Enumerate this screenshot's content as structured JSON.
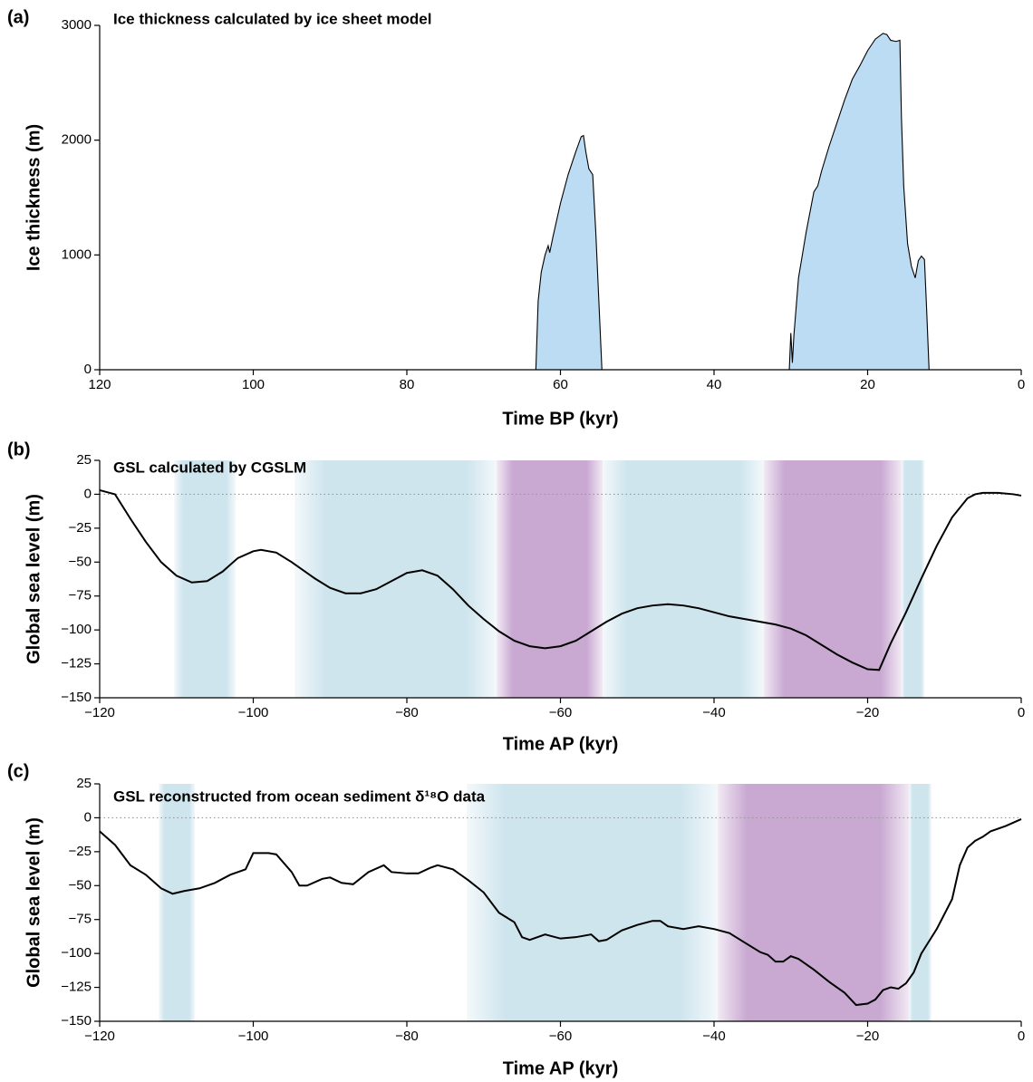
{
  "chart_data": [
    {
      "type": "area",
      "panel_label": "(a)",
      "title": "Ice thickness calculated by ice sheet model",
      "x_label": "Time BP (kyr)",
      "y_label": "Ice thickness (m)",
      "color": "#bcdcf4",
      "x": [
        120,
        63.2,
        62.9,
        62.5,
        62.0,
        61.6,
        61.4,
        61.0,
        60.0,
        59.0,
        58.0,
        57.3,
        57.0,
        56.7,
        56.3,
        55.8,
        55.4,
        55.0,
        54.6,
        30.2,
        30.0,
        29.8,
        29.6,
        29.0,
        28.0,
        27.0,
        26.5,
        26.0,
        25.0,
        24.0,
        23.0,
        22.0,
        21.0,
        20.0,
        19.0,
        18.0,
        17.5,
        17.0,
        16.3,
        15.8,
        15.6,
        15.3,
        14.8,
        14.3,
        13.8,
        13.4,
        13.0,
        12.6,
        12.3,
        12.0,
        0
      ],
      "values": [
        0,
        0,
        600,
        850,
        1000,
        1080,
        1020,
        1150,
        1450,
        1700,
        1900,
        2030,
        2040,
        1900,
        1750,
        1700,
        1200,
        600,
        0,
        0,
        320,
        60,
        300,
        800,
        1200,
        1550,
        1600,
        1730,
        1950,
        2150,
        2350,
        2530,
        2650,
        2780,
        2880,
        2930,
        2920,
        2870,
        2860,
        2870,
        2200,
        1600,
        1100,
        900,
        800,
        950,
        990,
        960,
        500,
        0,
        0
      ],
      "xlim": [
        120,
        0
      ],
      "xticks": [
        120,
        100,
        80,
        60,
        40,
        20,
        0
      ],
      "ylim": [
        0,
        3000
      ],
      "yticks": [
        0,
        1000,
        2000,
        3000
      ]
    },
    {
      "type": "line",
      "panel_label": "(b)",
      "title": "GSL calculated by CGSLM",
      "x_label": "Time AP (kyr)",
      "y_label": "Global sea level (m)",
      "color": "#000000",
      "reference_line": 0,
      "bands": [
        {
          "start": -110.3,
          "end": -102.3,
          "color": "#cfe5ee"
        },
        {
          "start": -94.6,
          "end": -68.3,
          "color": "#cfe5ee"
        },
        {
          "start": -68.3,
          "end": -54.5,
          "color": "#c9a9d2"
        },
        {
          "start": -54.5,
          "end": -33.5,
          "color": "#cfe5ee"
        },
        {
          "start": -33.5,
          "end": -15.6,
          "color": "#c9a9d2"
        },
        {
          "start": -15.6,
          "end": -12.6,
          "color": "#cfe5ee"
        }
      ],
      "x": [
        -120,
        -118,
        -116,
        -114,
        -112,
        -110,
        -108,
        -106,
        -104,
        -102,
        -100,
        -99,
        -97,
        -95,
        -92,
        -90,
        -88,
        -86,
        -84,
        -82,
        -80,
        -78,
        -76,
        -74,
        -72,
        -70,
        -68,
        -66,
        -64,
        -62,
        -60,
        -58,
        -56,
        -54,
        -52,
        -50,
        -48,
        -46,
        -44,
        -42,
        -40,
        -38,
        -36,
        -34,
        -32,
        -30,
        -28,
        -26,
        -24,
        -22,
        -20,
        -18.5,
        -17,
        -15,
        -13,
        -11,
        -9,
        -7,
        -6,
        -5,
        -3,
        -1,
        0
      ],
      "values": [
        3,
        0,
        -18,
        -35,
        -50,
        -60,
        -65,
        -64,
        -57,
        -47,
        -42,
        -41,
        -43,
        -50,
        -62,
        -69,
        -73,
        -73,
        -70,
        -64,
        -58,
        -56,
        -60,
        -70,
        -82,
        -92,
        -101,
        -108,
        -112,
        -113.5,
        -112,
        -108,
        -101,
        -94,
        -88,
        -84,
        -82,
        -81,
        -82,
        -84,
        -87,
        -90,
        -92,
        -94,
        -96,
        -99,
        -104,
        -111,
        -118,
        -124,
        -129,
        -129.5,
        -110,
        -87,
        -62,
        -38,
        -17,
        -3,
        0,
        1,
        1,
        0,
        -1
      ],
      "xlim": [
        -120,
        0
      ],
      "xticks": [
        {
          "value": -120,
          "label": "−120"
        },
        {
          "value": -100,
          "label": "−100"
        },
        {
          "value": -80,
          "label": "−80"
        },
        {
          "value": -60,
          "label": "−60"
        },
        {
          "value": -40,
          "label": "−40"
        },
        {
          "value": -20,
          "label": "−20"
        },
        0
      ],
      "ylim": [
        -150,
        25
      ],
      "yticks": [
        25,
        0,
        {
          "value": -25,
          "label": "−25"
        },
        {
          "value": -50,
          "label": "−50"
        },
        {
          "value": -75,
          "label": "−75"
        },
        {
          "value": -100,
          "label": "−100"
        },
        {
          "value": -125,
          "label": "−125"
        },
        {
          "value": -150,
          "label": "−150"
        }
      ]
    },
    {
      "type": "line",
      "panel_label": "(c)",
      "title": "GSL reconstructed from ocean sediment δ¹⁸O data",
      "x_label": "Time AP (kyr)",
      "y_label": "Global sea level (m)",
      "color": "#000000",
      "reference_line": 0,
      "bands": [
        {
          "start": -112.3,
          "end": -107.6,
          "color": "#cfe5ee"
        },
        {
          "start": -72.2,
          "end": -39.5,
          "color": "#cfe5ee"
        },
        {
          "start": -39.5,
          "end": -14.6,
          "color": "#c9a9d2"
        },
        {
          "start": -14.6,
          "end": -11.7,
          "color": "#cfe5ee"
        }
      ],
      "x": [
        -120,
        -118,
        -116,
        -114,
        -112,
        -110.5,
        -109,
        -107,
        -105,
        -103,
        -101,
        -100,
        -98,
        -97,
        -95,
        -94,
        -93,
        -91,
        -90,
        -88.5,
        -87,
        -85,
        -83,
        -82,
        -80,
        -78.5,
        -77,
        -76,
        -74,
        -72,
        -70,
        -68,
        -66,
        -65,
        -64,
        -62,
        -60,
        -58,
        -56,
        -55,
        -54,
        -52,
        -50,
        -48,
        -47,
        -46,
        -44,
        -42,
        -40,
        -38,
        -36,
        -34,
        -33,
        -32,
        -31,
        -30,
        -29,
        -27,
        -25,
        -23,
        -21.5,
        -20,
        -19,
        -18,
        -17,
        -16,
        -15,
        -14,
        -13,
        -11,
        -9,
        -8,
        -7,
        -6,
        -5,
        -4,
        -2,
        0
      ],
      "values": [
        -10,
        -20,
        -35,
        -42,
        -52,
        -56,
        -54,
        -52,
        -48,
        -42,
        -38,
        -26,
        -26,
        -27,
        -40,
        -50,
        -50,
        -45,
        -44,
        -48,
        -49,
        -40,
        -35,
        -40,
        -41,
        -41,
        -37,
        -35,
        -38,
        -46,
        -55,
        -70,
        -77,
        -88,
        -90,
        -86,
        -89,
        -88,
        -86,
        -91,
        -90,
        -83,
        -79,
        -76,
        -76,
        -80,
        -82,
        -80,
        -82,
        -85,
        -92,
        -99,
        -101,
        -106,
        -106,
        -102,
        -104,
        -112,
        -121,
        -129,
        -138,
        -137,
        -134,
        -127,
        -125,
        -126,
        -122,
        -114,
        -100,
        -82,
        -60,
        -35,
        -22,
        -17,
        -14,
        -10,
        -6,
        -1
      ],
      "xlim": [
        -120,
        0
      ],
      "xticks": [
        {
          "value": -120,
          "label": "−120"
        },
        {
          "value": -100,
          "label": "−100"
        },
        {
          "value": -80,
          "label": "−80"
        },
        {
          "value": -60,
          "label": "−60"
        },
        {
          "value": -40,
          "label": "−40"
        },
        {
          "value": -20,
          "label": "−20"
        },
        0
      ],
      "ylim": [
        -150,
        25
      ],
      "yticks": [
        25,
        0,
        {
          "value": -25,
          "label": "−25"
        },
        {
          "value": -50,
          "label": "−50"
        },
        {
          "value": -75,
          "label": "−75"
        },
        {
          "value": -100,
          "label": "−100"
        },
        {
          "value": -125,
          "label": "−125"
        },
        {
          "value": -150,
          "label": "−150"
        }
      ]
    }
  ]
}
